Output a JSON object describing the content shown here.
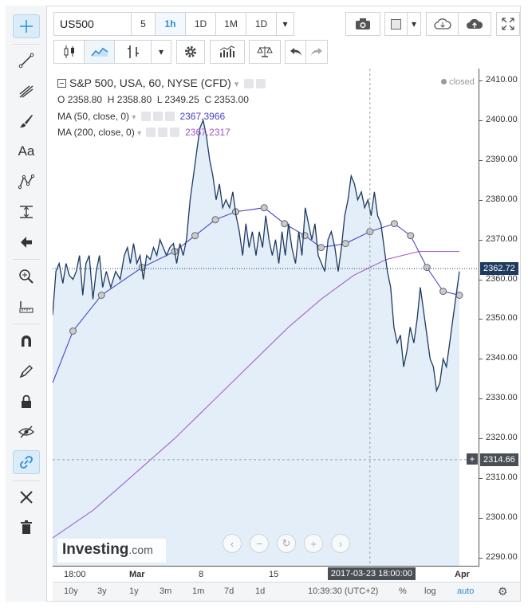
{
  "toolbar": {
    "symbol": "US500",
    "intervals": [
      "5",
      "1h",
      "1D",
      "1M",
      "1D"
    ],
    "active_interval": "1h"
  },
  "legend": {
    "title": "S&P 500, USA, 60, NYSE (CFD)",
    "ohlc_o_label": "O",
    "ohlc_o": "2358.80",
    "ohlc_h_label": "H",
    "ohlc_h": "2358.80",
    "ohlc_l_label": "L",
    "ohlc_l": "2349.25",
    "ohlc_c_label": "C",
    "ohlc_c": "2353.00",
    "ma50_label": "MA (50, close, 0)",
    "ma50_value": "2367.3966",
    "ma200_label": "MA (200, close, 0)",
    "ma200_value": "2367.2317",
    "status": "closed"
  },
  "price_scale": {
    "ticks": [
      "2410.00",
      "2400.00",
      "2390.00",
      "2380.00",
      "2370.00",
      "2360.00",
      "2350.00",
      "2340.00",
      "2330.00",
      "2320.00",
      "2310.00",
      "2300.00",
      "2290.00"
    ],
    "last_price": "2362.72",
    "crosshair_price": "2314.66"
  },
  "time_axis": {
    "ticks": [
      "18:00",
      "Mar",
      "8",
      "15",
      "Apr"
    ],
    "crosshair_label": "2017-03-23 18:00:00"
  },
  "footer": {
    "ranges": [
      "10y",
      "3y",
      "1y",
      "3m",
      "1m",
      "7d",
      "1d"
    ],
    "clock": "10:39:30 (UTC+2)",
    "percent": "%",
    "log": "log",
    "auto": "auto"
  },
  "watermark": {
    "brand": "Investing",
    "suffix": ".com"
  },
  "colors": {
    "price_line": "#1e3a5f",
    "area_fill": "#dceaf7",
    "ma50": "#3b34c2",
    "ma200": "#9a53c8",
    "accent": "#2f8dd4"
  },
  "chart_data": {
    "type": "area",
    "ylim": [
      2288,
      2413
    ],
    "xlim": [
      0,
      100
    ],
    "price_series": [
      [
        0,
        2351
      ],
      [
        0.8,
        2362
      ],
      [
        1.6,
        2364
      ],
      [
        2.5,
        2359
      ],
      [
        3.3,
        2364
      ],
      [
        4.1,
        2361
      ],
      [
        5,
        2360
      ],
      [
        5.8,
        2362
      ],
      [
        6.6,
        2366
      ],
      [
        7.4,
        2356
      ],
      [
        8.2,
        2364
      ],
      [
        9,
        2366
      ],
      [
        9.9,
        2355
      ],
      [
        10.7,
        2362
      ],
      [
        11.5,
        2366
      ],
      [
        12.3,
        2358
      ],
      [
        13.2,
        2362
      ],
      [
        14.3,
        2358
      ],
      [
        15.5,
        2362
      ],
      [
        16.6,
        2360
      ],
      [
        17.6,
        2366
      ],
      [
        18.4,
        2368
      ],
      [
        19.1,
        2364
      ],
      [
        19.9,
        2369
      ],
      [
        20.7,
        2364
      ],
      [
        21.5,
        2366
      ],
      [
        22.3,
        2360
      ],
      [
        23.1,
        2366
      ],
      [
        24,
        2365
      ],
      [
        24.8,
        2368
      ],
      [
        25.6,
        2366
      ],
      [
        26.4,
        2370
      ],
      [
        27.2,
        2368
      ],
      [
        28,
        2366
      ],
      [
        28.8,
        2368
      ],
      [
        29.7,
        2369
      ],
      [
        30.5,
        2364
      ],
      [
        31.3,
        2369
      ],
      [
        32.1,
        2366
      ],
      [
        32.9,
        2370
      ],
      [
        33.8,
        2380
      ],
      [
        34.6,
        2386
      ],
      [
        35.4,
        2392
      ],
      [
        36.2,
        2398
      ],
      [
        37,
        2400
      ],
      [
        37.8,
        2396
      ],
      [
        38.6,
        2390
      ],
      [
        39.4,
        2386
      ],
      [
        40.2,
        2380
      ],
      [
        41,
        2384
      ],
      [
        41.8,
        2378
      ],
      [
        42.6,
        2380
      ],
      [
        43.5,
        2378
      ],
      [
        44.3,
        2382
      ],
      [
        45.1,
        2376
      ],
      [
        45.9,
        2372
      ],
      [
        46.7,
        2366
      ],
      [
        47.5,
        2374
      ],
      [
        48.3,
        2368
      ],
      [
        49.1,
        2372
      ],
      [
        50,
        2366
      ],
      [
        50.8,
        2372
      ],
      [
        51.6,
        2368
      ],
      [
        52.4,
        2376
      ],
      [
        53.2,
        2370
      ],
      [
        54,
        2366
      ],
      [
        54.8,
        2370
      ],
      [
        55.6,
        2364
      ],
      [
        56.4,
        2372
      ],
      [
        57.2,
        2366
      ],
      [
        58,
        2374
      ],
      [
        58.8,
        2368
      ],
      [
        59.7,
        2364
      ],
      [
        60.5,
        2372
      ],
      [
        61.3,
        2366
      ],
      [
        62.1,
        2378
      ],
      [
        62.9,
        2374
      ],
      [
        63.7,
        2370
      ],
      [
        64.5,
        2374
      ],
      [
        65.3,
        2366
      ],
      [
        66.1,
        2364
      ],
      [
        66.9,
        2362
      ],
      [
        67.7,
        2370
      ],
      [
        68.5,
        2372
      ],
      [
        69.4,
        2368
      ],
      [
        70.2,
        2362
      ],
      [
        71,
        2368
      ],
      [
        71.8,
        2376
      ],
      [
        72.6,
        2380
      ],
      [
        73.4,
        2386
      ],
      [
        74.2,
        2384
      ],
      [
        75,
        2380
      ],
      [
        75.9,
        2382
      ],
      [
        76.7,
        2378
      ],
      [
        77.5,
        2380
      ],
      [
        78.3,
        2376
      ],
      [
        79.1,
        2382
      ],
      [
        79.9,
        2376
      ],
      [
        80.7,
        2374
      ],
      [
        81.5,
        2368
      ],
      [
        82.3,
        2362
      ],
      [
        83.1,
        2358
      ],
      [
        83.9,
        2348
      ],
      [
        84.7,
        2344
      ],
      [
        85.5,
        2346
      ],
      [
        86.3,
        2338
      ],
      [
        87.1,
        2342
      ],
      [
        87.9,
        2348
      ],
      [
        88.8,
        2344
      ],
      [
        89.6,
        2350
      ],
      [
        90.4,
        2358
      ],
      [
        91.2,
        2352
      ],
      [
        92,
        2346
      ],
      [
        92.8,
        2340
      ],
      [
        93.6,
        2338
      ],
      [
        94.4,
        2332
      ],
      [
        95.2,
        2334
      ],
      [
        96,
        2340
      ],
      [
        96.8,
        2338
      ],
      [
        97.6,
        2344
      ],
      [
        98.4,
        2350
      ],
      [
        99.2,
        2356
      ],
      [
        100,
        2362
      ]
    ],
    "ma50_series": [
      [
        0,
        2334
      ],
      [
        5,
        2347
      ],
      [
        12,
        2356
      ],
      [
        22,
        2363
      ],
      [
        30,
        2367
      ],
      [
        35,
        2371
      ],
      [
        40,
        2375
      ],
      [
        45,
        2377
      ],
      [
        52,
        2378
      ],
      [
        57,
        2374
      ],
      [
        62,
        2371
      ],
      [
        66,
        2368
      ],
      [
        72,
        2369
      ],
      [
        78,
        2372
      ],
      [
        84,
        2374
      ],
      [
        88,
        2371
      ],
      [
        92,
        2363
      ],
      [
        96,
        2357
      ],
      [
        100,
        2356
      ]
    ],
    "ma200_series": [
      [
        0,
        2295
      ],
      [
        10,
        2302
      ],
      [
        20,
        2311
      ],
      [
        30,
        2320
      ],
      [
        40,
        2330
      ],
      [
        50,
        2340
      ],
      [
        58,
        2348
      ],
      [
        66,
        2355
      ],
      [
        74,
        2361
      ],
      [
        82,
        2365
      ],
      [
        90,
        2367
      ],
      [
        100,
        2367
      ]
    ],
    "crosshair": {
      "x": 78,
      "price": 2314.66
    },
    "last_price": 2362.72
  }
}
